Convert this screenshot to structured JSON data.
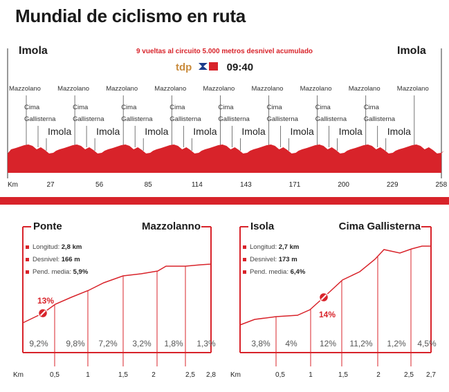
{
  "title": "Mundial de ciclismo en ruta",
  "route": {
    "start": "Imola",
    "finish": "Imola",
    "subtitle": "9 vueltas al circuito 5.000 metros desnivel acumulado",
    "broadcast": {
      "network": "tdp",
      "channel": "1",
      "time": "09:40"
    },
    "labels": {
      "mazzolano": "Mazzolano",
      "cima1": "Cima",
      "cima2": "Gallisterna",
      "imola": "Imola"
    },
    "km_unit": "Km",
    "km_ticks": [
      "27",
      "56",
      "85",
      "114",
      "143",
      "171",
      "200",
      "229",
      "258"
    ],
    "colors": {
      "accent": "#d8232a"
    }
  },
  "climbs": [
    {
      "left_title": "Ponte",
      "right_title": "Mazzolanno",
      "stats": [
        {
          "label": "Longitud:",
          "value": "2,8 km"
        },
        {
          "label": "Desnivel:",
          "value": "166 m"
        },
        {
          "label": "Pend. media:",
          "value": "5,9%"
        }
      ],
      "max_gradient": "13%",
      "segment_gradients": [
        "9,2%",
        "9,8%",
        "7,2%",
        "3,2%",
        "1,8%",
        "1,3%"
      ],
      "km_unit": "Km",
      "km_ticks": [
        "0,5",
        "1",
        "1,5",
        "2",
        "2,5",
        "2,8"
      ]
    },
    {
      "left_title": "Isola",
      "right_title": "Cima Gallisterna",
      "stats": [
        {
          "label": "Longitud:",
          "value": "2,7 km"
        },
        {
          "label": "Desnivel:",
          "value": "173 m"
        },
        {
          "label": "Pend. media:",
          "value": "6,4%"
        }
      ],
      "max_gradient": "14%",
      "segment_gradients": [
        "3,8%",
        "4%",
        "12%",
        "11,2%",
        "1,2%",
        "4,5%"
      ],
      "km_unit": "Km",
      "km_ticks": [
        "0,5",
        "1",
        "1,5",
        "2",
        "2,5",
        "2,7"
      ]
    }
  ]
}
